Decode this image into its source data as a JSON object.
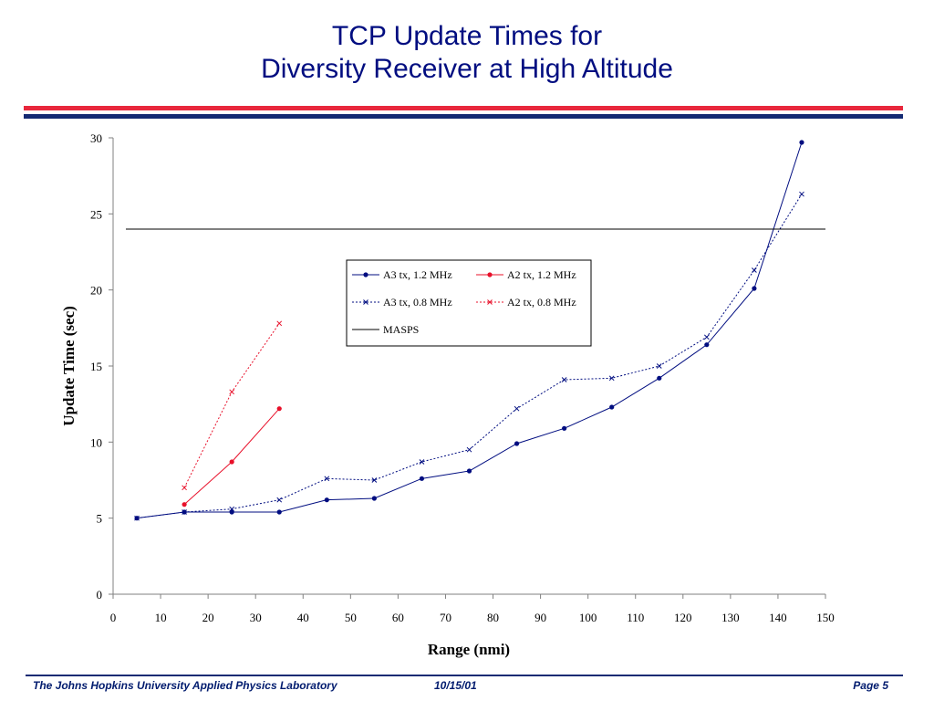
{
  "slide": {
    "title_line1": "TCP Update Times for",
    "title_line2": "Diversity Receiver at High Altitude",
    "footer_org": "The Johns Hopkins University Applied Physics Laboratory",
    "footer_date": "10/15/01",
    "footer_page": "Page 5",
    "colors": {
      "title": "#000d80",
      "rule_red": "#e8273c",
      "rule_blue": "#142a73"
    }
  },
  "chart_data": {
    "type": "line",
    "title": "",
    "xlabel": "Range (nmi)",
    "ylabel": "Update Time (sec)",
    "xlim": [
      0,
      150
    ],
    "ylim": [
      0,
      30
    ],
    "xticks": [
      0,
      10,
      20,
      30,
      40,
      50,
      60,
      70,
      80,
      90,
      100,
      110,
      120,
      130,
      140,
      150
    ],
    "yticks": [
      0,
      5,
      10,
      15,
      20,
      25,
      30
    ],
    "grid": false,
    "legend_position": "center",
    "series": [
      {
        "name": "A3 tx, 1.2 MHz",
        "color": "#000d80",
        "dash": "solid",
        "marker": "dot",
        "x": [
          5,
          15,
          25,
          35,
          45,
          55,
          65,
          75,
          85,
          95,
          105,
          115,
          125,
          135,
          145
        ],
        "y": [
          5.0,
          5.4,
          5.4,
          5.4,
          6.2,
          6.3,
          7.6,
          8.1,
          9.9,
          10.9,
          12.3,
          14.2,
          16.4,
          20.1,
          29.7
        ]
      },
      {
        "name": "A2 tx, 1.2 MHz",
        "color": "#e8102a",
        "dash": "solid",
        "marker": "dot",
        "x": [
          15,
          25,
          35
        ],
        "y": [
          5.9,
          8.7,
          12.2
        ]
      },
      {
        "name": "A3 tx, 0.8 MHz",
        "color": "#000d80",
        "dash": "dotted",
        "marker": "x",
        "x": [
          5,
          15,
          25,
          35,
          45,
          55,
          65,
          75,
          85,
          95,
          105,
          115,
          125,
          135,
          145
        ],
        "y": [
          5.0,
          5.4,
          5.6,
          6.2,
          7.6,
          7.5,
          8.7,
          9.5,
          12.2,
          14.1,
          14.2,
          15.0,
          16.9,
          21.3,
          26.3
        ]
      },
      {
        "name": "A2 tx, 0.8 MHz",
        "color": "#e8102a",
        "dash": "dotted",
        "marker": "x",
        "x": [
          15,
          25,
          35
        ],
        "y": [
          7.0,
          13.3,
          17.8
        ]
      },
      {
        "name": "MASPS",
        "color": "#000000",
        "dash": "solid",
        "marker": "none",
        "x": [
          0,
          150
        ],
        "y": [
          24,
          24
        ]
      }
    ]
  }
}
